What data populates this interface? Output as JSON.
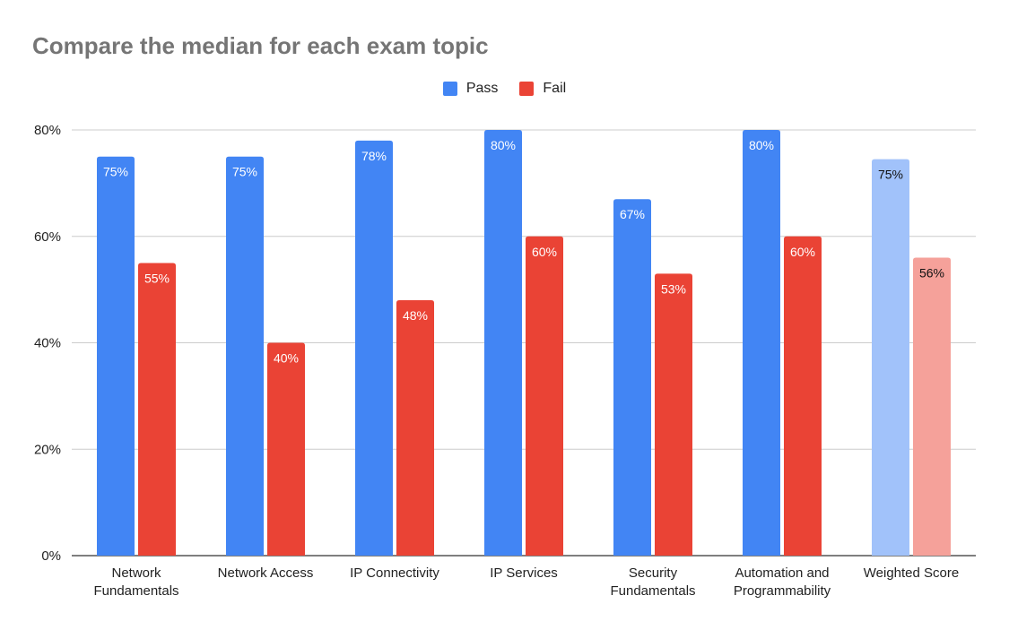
{
  "chart_data": {
    "type": "bar",
    "title": "Compare the median for each exam topic",
    "xlabel": "",
    "ylabel": "",
    "ylim": [
      0,
      80
    ],
    "yticks": [
      "0%",
      "20%",
      "40%",
      "60%",
      "80%"
    ],
    "ytick_values": [
      0,
      20,
      40,
      60,
      80
    ],
    "grid": true,
    "legend_position": "top-center",
    "categories": [
      [
        "Network",
        "Fundamentals"
      ],
      [
        "Network Access"
      ],
      [
        "IP Connectivity"
      ],
      [
        "IP Services"
      ],
      [
        "Security",
        "Fundamentals"
      ],
      [
        "Automation and",
        "Programmability"
      ],
      [
        "Weighted Score"
      ]
    ],
    "series": [
      {
        "name": "Pass",
        "color": "#4285f4",
        "highlight_color": "#a1c2fa",
        "values": [
          75,
          75,
          78,
          80,
          67,
          80,
          74.5
        ],
        "labels": [
          "75%",
          "75%",
          "78%",
          "80%",
          "67%",
          "80%",
          "75%"
        ]
      },
      {
        "name": "Fail",
        "color": "#ea4335",
        "highlight_color": "#f5a19a",
        "values": [
          55,
          40,
          48,
          60,
          53,
          60,
          56
        ],
        "labels": [
          "55%",
          "40%",
          "48%",
          "60%",
          "53%",
          "60%",
          "56%"
        ]
      }
    ],
    "highlighted_category_index": 6
  }
}
